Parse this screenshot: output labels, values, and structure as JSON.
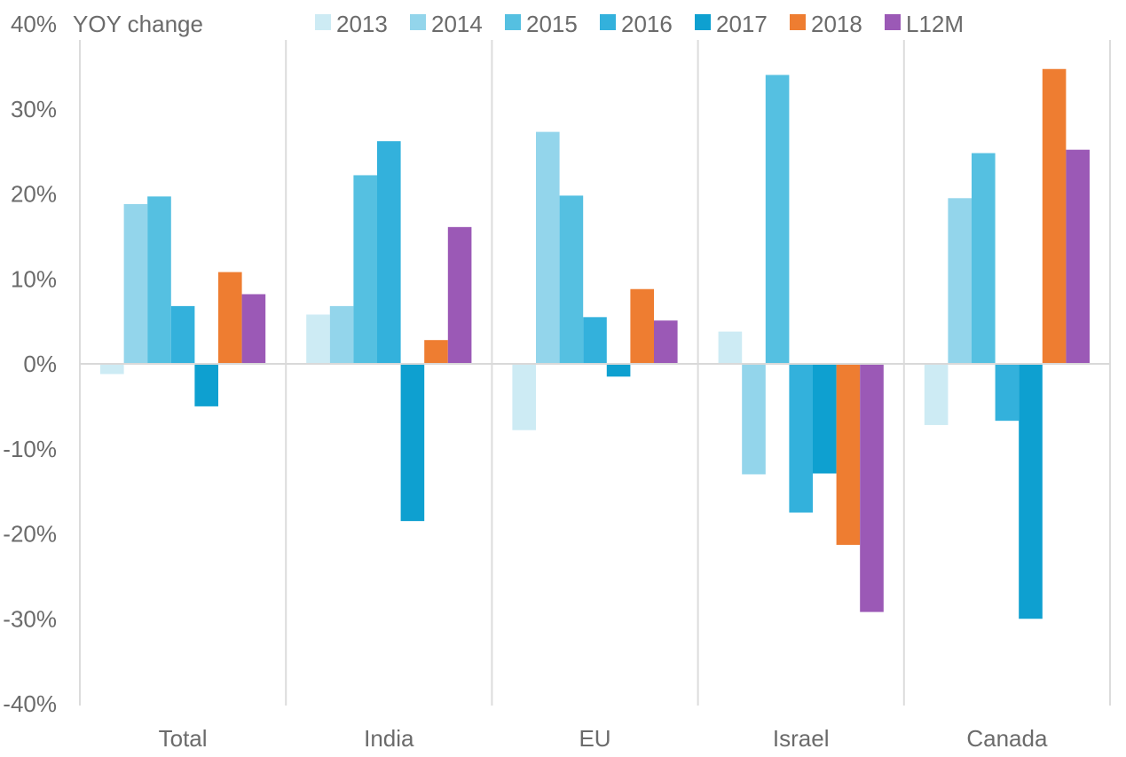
{
  "chart_data": {
    "type": "bar",
    "ylabel": "YOY change",
    "ylim": [
      -40,
      40
    ],
    "yticks": [
      -40,
      -30,
      -20,
      -10,
      0,
      10,
      20,
      30,
      40
    ],
    "ytick_labels": [
      "-40%",
      "-30%",
      "-20%",
      "-10%",
      "0%",
      "10%",
      "20%",
      "30%",
      "40%"
    ],
    "categories": [
      "Total",
      "India",
      "EU",
      "Israel",
      "Canada"
    ],
    "legend_position": "top",
    "grid": false,
    "series": [
      {
        "name": "2013",
        "color": "#cdebf4",
        "values": [
          -1.2,
          5.8,
          -7.8,
          3.8,
          -7.2
        ]
      },
      {
        "name": "2014",
        "color": "#93d5eb",
        "values": [
          18.8,
          6.8,
          27.3,
          -13.0,
          19.5
        ]
      },
      {
        "name": "2015",
        "color": "#55c0e1",
        "values": [
          19.7,
          22.2,
          19.8,
          34.0,
          24.8
        ]
      },
      {
        "name": "2016",
        "color": "#33b1dc",
        "values": [
          6.8,
          26.2,
          5.5,
          -17.5,
          -6.7
        ]
      },
      {
        "name": "2017",
        "color": "#0ea0d0",
        "values": [
          -5.0,
          -18.5,
          -1.5,
          -12.9,
          -30.0
        ]
      },
      {
        "name": "2018",
        "color": "#ee7d31",
        "values": [
          10.8,
          2.8,
          8.8,
          -21.3,
          34.7
        ]
      },
      {
        "name": "L12M",
        "color": "#9b59b6",
        "values": [
          8.2,
          16.1,
          5.1,
          -29.2,
          25.2
        ]
      }
    ]
  }
}
